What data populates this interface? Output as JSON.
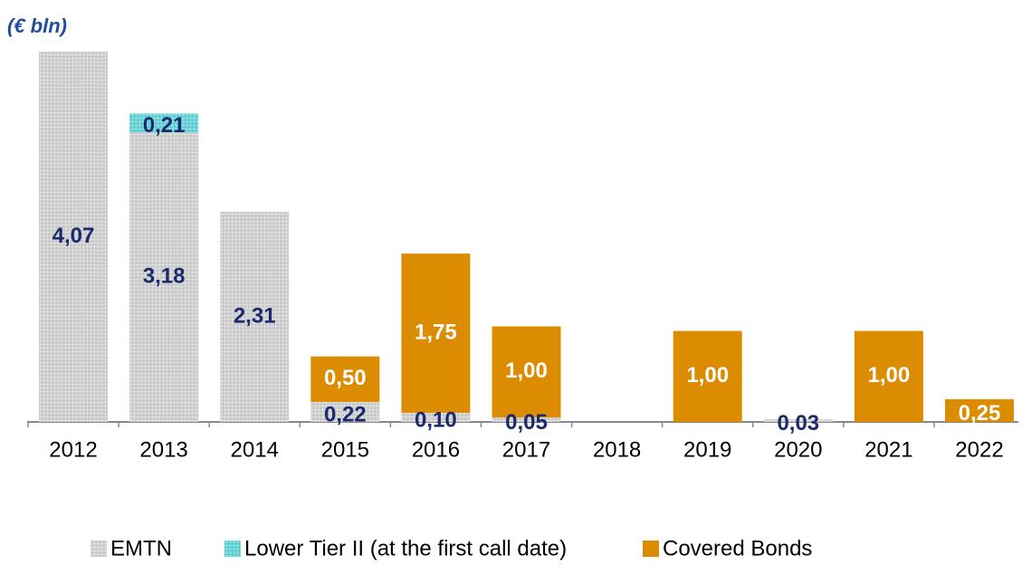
{
  "chart_data": {
    "type": "bar",
    "stacked": true,
    "subtitle": "(€ bln)",
    "categories": [
      "2012",
      "2013",
      "2014",
      "2015",
      "2016",
      "2017",
      "2018",
      "2019",
      "2020",
      "2021",
      "2022"
    ],
    "series": [
      {
        "name": "EMTN",
        "color": "#c8c8c8",
        "label_color": "#1a2a6c",
        "values": [
          4.07,
          3.18,
          2.31,
          0.22,
          0.1,
          0.05,
          null,
          null,
          0.03,
          null,
          null
        ],
        "value_labels": [
          "4,07",
          "3,18",
          "2,31",
          "0,22",
          "0,10",
          "0,05",
          null,
          null,
          "0,03",
          null,
          null
        ]
      },
      {
        "name": "Lower Tier II (at the first call date)",
        "color": "#80e0e0",
        "label_color": "#1a2a6c",
        "values": [
          null,
          0.21,
          null,
          null,
          null,
          null,
          null,
          null,
          null,
          null,
          null
        ],
        "value_labels": [
          null,
          "0,21",
          null,
          null,
          null,
          null,
          null,
          null,
          null,
          null,
          null
        ]
      },
      {
        "name": "Covered Bonds",
        "color": "#dc8c00",
        "label_color": "#ffffff",
        "values": [
          null,
          null,
          null,
          0.5,
          1.75,
          1.0,
          null,
          1.0,
          null,
          1.0,
          0.25
        ],
        "value_labels": [
          null,
          null,
          null,
          "0,50",
          "1,75",
          "1,00",
          null,
          "1,00",
          null,
          "1,00",
          "0,25"
        ]
      }
    ]
  }
}
